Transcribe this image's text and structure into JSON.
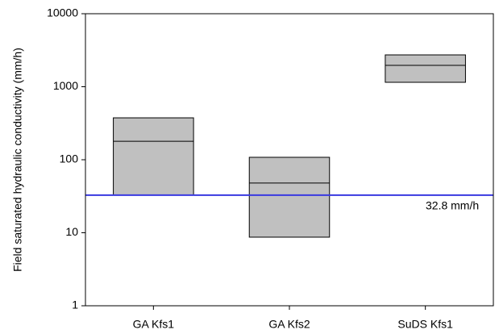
{
  "chart_data": {
    "type": "box",
    "ylabel": "Field saturated hydraulic conductivity (mm/h)",
    "categories": [
      "GA Kfs1",
      "GA Kfs2",
      "SuDS Kfs1"
    ],
    "low": [
      33,
      8.7,
      1150
    ],
    "median": [
      179,
      48,
      1960
    ],
    "high": [
      375,
      108,
      2730
    ],
    "color": "#c0c0c0",
    "ylim": [
      1,
      10000
    ],
    "yticks": [
      1,
      10,
      100,
      1000,
      10000
    ],
    "yscale": "log",
    "reference_line": {
      "value": 32.8,
      "label": "32.8 mm/h",
      "color": "#3a3ae0"
    }
  }
}
